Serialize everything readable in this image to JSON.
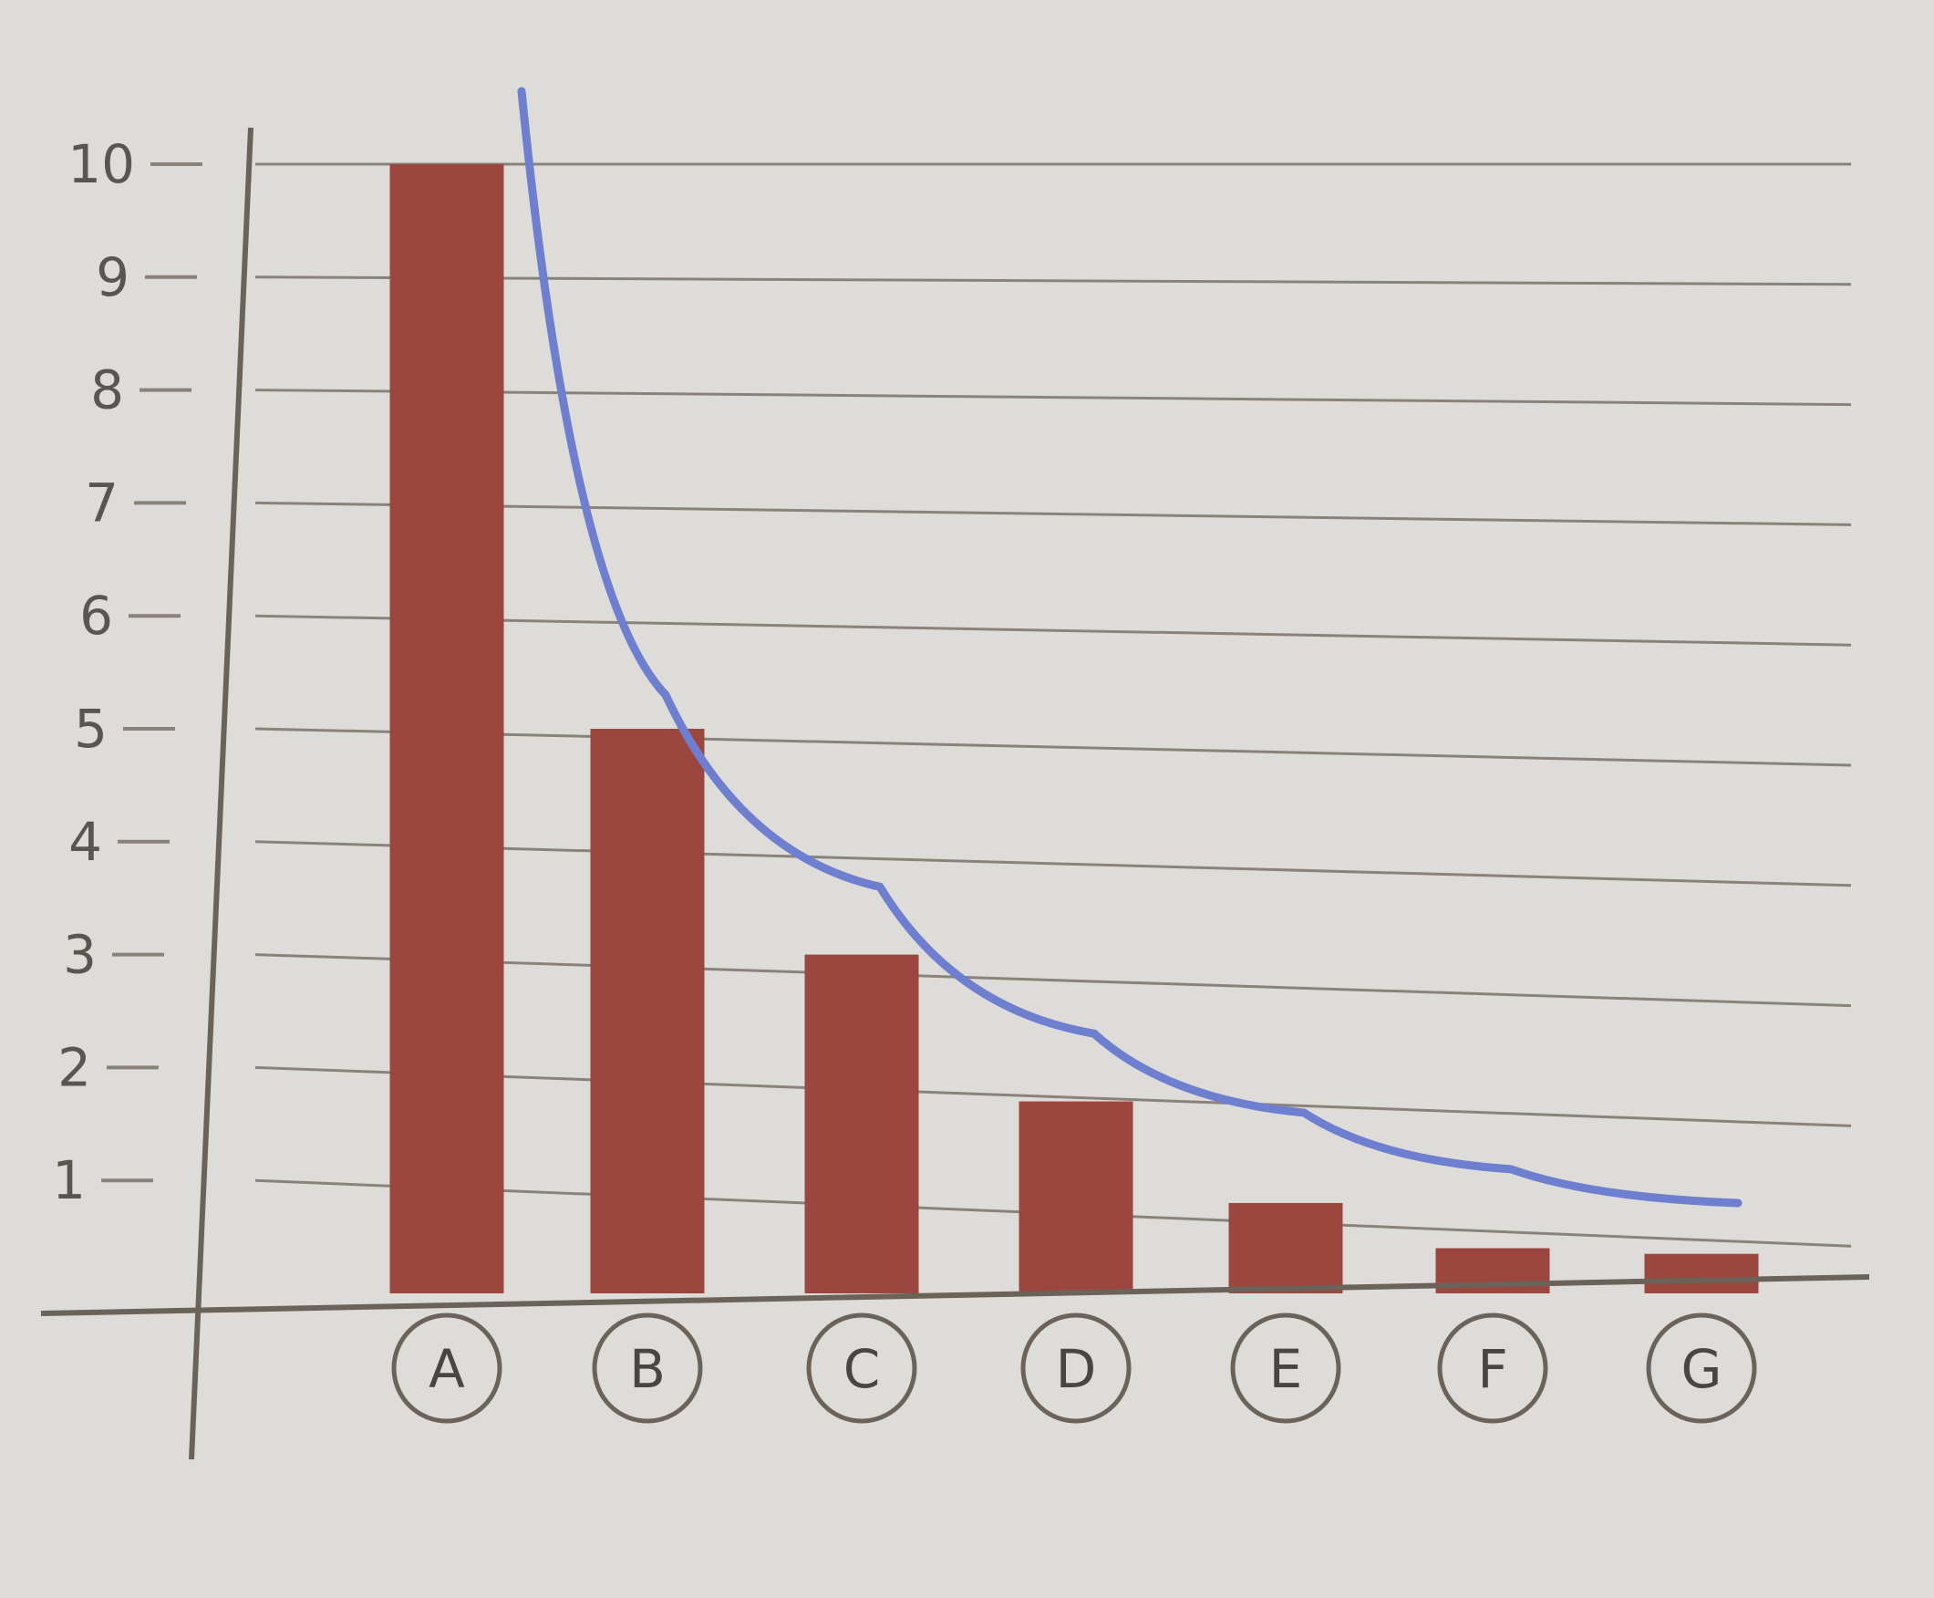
{
  "chart_data": {
    "type": "bar",
    "categories": [
      "A",
      "B",
      "C",
      "D",
      "E",
      "F",
      "G"
    ],
    "values": [
      10,
      5,
      3,
      1.7,
      0.8,
      0.4,
      0.35
    ],
    "curve": {
      "type": "line",
      "points": [
        {
          "x": "A",
          "y": 10.8
        },
        {
          "x": "B",
          "y": 5.3
        },
        {
          "x": "C",
          "y": 3.6
        },
        {
          "x": "D",
          "y": 2.3
        },
        {
          "x": "E",
          "y": 1.6
        },
        {
          "x": "F",
          "y": 1.1
        },
        {
          "x": "G",
          "y": 0.8
        }
      ]
    },
    "y_ticks": [
      "1",
      "2",
      "3",
      "4",
      "5",
      "6",
      "7",
      "8",
      "9",
      "10"
    ],
    "ylim": [
      0,
      10
    ],
    "grid": true,
    "category_markers": "circled",
    "colors": {
      "bar": "#9c4640",
      "curve": "#6f7fcf",
      "axis": "#6b625a",
      "grid": "#8a827a",
      "background": "#dedcd8"
    }
  }
}
